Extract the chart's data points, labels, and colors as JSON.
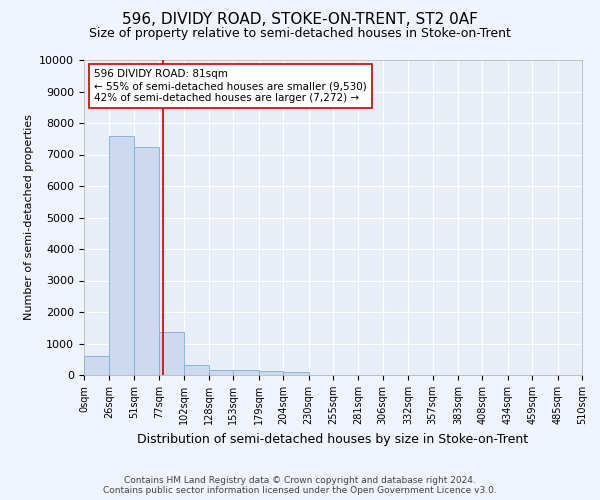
{
  "title": "596, DIVIDY ROAD, STOKE-ON-TRENT, ST2 0AF",
  "subtitle": "Size of property relative to semi-detached houses in Stoke-on-Trent",
  "xlabel": "Distribution of semi-detached houses by size in Stoke-on-Trent",
  "ylabel": "Number of semi-detached properties",
  "footer_line1": "Contains HM Land Registry data © Crown copyright and database right 2024.",
  "footer_line2": "Contains public sector information licensed under the Open Government Licence v3.0.",
  "annotation_title": "596 DIVIDY ROAD: 81sqm",
  "annotation_line2": "← 55% of semi-detached houses are smaller (9,530)",
  "annotation_line3": "42% of semi-detached houses are larger (7,272) →",
  "property_sqm": 81,
  "bin_edges": [
    0,
    26,
    51,
    77,
    102,
    128,
    153,
    179,
    204,
    230,
    255,
    281,
    306,
    332,
    357,
    383,
    408,
    434,
    459,
    485,
    510
  ],
  "bin_counts": [
    600,
    7600,
    7250,
    1350,
    325,
    160,
    155,
    115,
    100,
    0,
    0,
    0,
    0,
    0,
    0,
    0,
    0,
    0,
    0,
    0
  ],
  "bar_color": "#ccd9ee",
  "bar_edge_color": "#7bafd4",
  "vline_color": "#cc0000",
  "vline_x": 81,
  "annotation_box_color": "#ffffff",
  "annotation_box_edge": "#cc0000",
  "ylim": [
    0,
    10000
  ],
  "yticks": [
    0,
    1000,
    2000,
    3000,
    4000,
    5000,
    6000,
    7000,
    8000,
    9000,
    10000
  ],
  "background_color": "#f0f4fc",
  "plot_bg_color": "#e8eef8",
  "grid_color": "#ffffff",
  "title_fontsize": 11,
  "subtitle_fontsize": 9,
  "ylabel_fontsize": 8,
  "xlabel_fontsize": 9,
  "ytick_fontsize": 8,
  "xtick_fontsize": 7,
  "footer_fontsize": 6.5
}
